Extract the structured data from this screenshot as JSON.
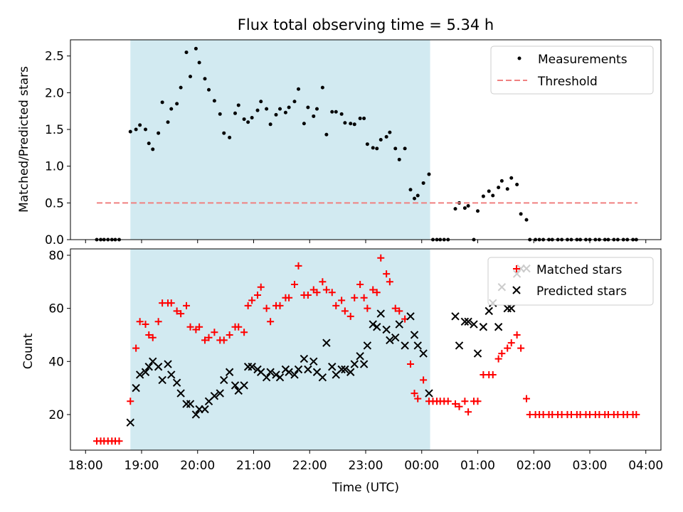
{
  "chart_data": [
    {
      "type": "scatter",
      "title": "Flux total observing time = 5.34 h",
      "xlabel": "",
      "ylabel": "Matched/Predicted stars",
      "ylim": [
        0,
        2.72
      ],
      "yticks": [
        "0.0",
        "0.5",
        "1.0",
        "1.5",
        "2.0",
        "2.5"
      ],
      "xlim": [
        -0.27,
        10.27
      ],
      "shaded_interval": [
        0.8,
        6.15
      ],
      "shade_color": "#add8e6",
      "legend_position": "top-right",
      "series": [
        {
          "name": "Measurements",
          "kind": "points",
          "color": "#000000",
          "x": [
            0.2,
            0.27,
            0.33,
            0.4,
            0.47,
            0.53,
            0.6,
            0.8,
            0.9,
            0.97,
            1.07,
            1.13,
            1.2,
            1.3,
            1.37,
            1.47,
            1.53,
            1.63,
            1.7,
            1.8,
            1.87,
            1.97,
            2.03,
            2.13,
            2.2,
            2.3,
            2.4,
            2.47,
            2.57,
            2.67,
            2.73,
            2.83,
            2.9,
            2.97,
            3.07,
            3.13,
            3.23,
            3.3,
            3.4,
            3.47,
            3.57,
            3.63,
            3.73,
            3.8,
            3.9,
            3.97,
            4.07,
            4.13,
            4.23,
            4.3,
            4.4,
            4.47,
            4.57,
            4.63,
            4.73,
            4.8,
            4.9,
            4.97,
            5.03,
            5.13,
            5.2,
            5.27,
            5.37,
            5.43,
            5.53,
            5.6,
            5.7,
            5.8,
            5.87,
            5.93,
            6.03,
            6.13,
            6.2,
            6.27,
            6.33,
            6.4,
            6.47,
            6.6,
            6.67,
            6.77,
            6.83,
            6.93,
            7.0,
            7.1,
            7.2,
            7.27,
            7.37,
            7.43,
            7.53,
            7.6,
            7.7,
            7.77,
            7.87,
            7.93,
            8.03,
            8.1,
            8.17,
            8.27,
            8.33,
            8.43,
            8.5,
            8.6,
            8.67,
            8.77,
            8.83,
            8.93,
            9.0,
            9.1,
            9.17,
            9.27,
            9.33,
            9.43,
            9.5,
            9.6,
            9.67,
            9.77,
            9.83
          ],
          "y": [
            0,
            0,
            0,
            0,
            0,
            0,
            0,
            1.47,
            1.5,
            1.56,
            1.5,
            1.31,
            1.23,
            1.45,
            1.87,
            1.6,
            1.78,
            1.85,
            2.07,
            2.55,
            2.22,
            2.6,
            2.41,
            2.19,
            2.04,
            1.89,
            1.71,
            1.45,
            1.39,
            1.72,
            1.83,
            1.64,
            1.6,
            1.66,
            1.76,
            1.88,
            1.78,
            1.57,
            1.7,
            1.78,
            1.73,
            1.8,
            1.88,
            2.05,
            1.58,
            1.8,
            1.68,
            1.78,
            2.07,
            1.43,
            1.74,
            1.74,
            1.71,
            1.59,
            1.58,
            1.57,
            1.65,
            1.65,
            1.3,
            1.25,
            1.24,
            1.36,
            1.4,
            1.46,
            1.24,
            1.09,
            1.24,
            0.68,
            0.56,
            0.6,
            0.77,
            0.89,
            0,
            0,
            0,
            0,
            0,
            0.42,
            0.5,
            0.43,
            0.46,
            0,
            0.39,
            0.59,
            0.66,
            0.6,
            0.71,
            0.8,
            0.69,
            0.84,
            0.75,
            0.35,
            0.27,
            0,
            0,
            0,
            0,
            0,
            0,
            0,
            0,
            0,
            0,
            0,
            0,
            0,
            0,
            0,
            0,
            0,
            0,
            0,
            0,
            0,
            0,
            0,
            0
          ]
        },
        {
          "name": "Threshold",
          "kind": "dashed-line",
          "color": "#f08080",
          "x": [
            0.2,
            9.85
          ],
          "y": [
            0.5,
            0.5
          ]
        }
      ]
    },
    {
      "type": "scatter",
      "title": "",
      "xlabel": "Time (UTC)",
      "ylabel": "Count",
      "ylim": [
        6.6,
        82.4
      ],
      "yticks": [
        "20",
        "40",
        "60",
        "80"
      ],
      "xlim": [
        -0.27,
        10.27
      ],
      "categories": [
        "18:00",
        "19:00",
        "20:00",
        "21:00",
        "22:00",
        "23:00",
        "00:00",
        "01:00",
        "02:00",
        "03:00",
        "04:00"
      ],
      "shaded_interval": [
        0.8,
        6.15
      ],
      "shade_color": "#add8e6",
      "legend_position": "top-right",
      "series": [
        {
          "name": "Matched stars",
          "kind": "plus",
          "color": "#ff0000",
          "x": [
            0.2,
            0.27,
            0.33,
            0.4,
            0.47,
            0.53,
            0.6,
            0.8,
            0.9,
            0.97,
            1.07,
            1.13,
            1.2,
            1.3,
            1.37,
            1.47,
            1.53,
            1.63,
            1.7,
            1.8,
            1.87,
            1.97,
            2.03,
            2.13,
            2.2,
            2.3,
            2.4,
            2.47,
            2.57,
            2.67,
            2.73,
            2.83,
            2.9,
            2.97,
            3.07,
            3.13,
            3.23,
            3.3,
            3.4,
            3.47,
            3.57,
            3.63,
            3.73,
            3.8,
            3.9,
            3.97,
            4.07,
            4.13,
            4.23,
            4.3,
            4.4,
            4.47,
            4.57,
            4.63,
            4.73,
            4.8,
            4.9,
            4.97,
            5.03,
            5.13,
            5.2,
            5.27,
            5.37,
            5.43,
            5.53,
            5.6,
            5.7,
            5.8,
            5.87,
            5.93,
            6.03,
            6.13,
            6.2,
            6.27,
            6.33,
            6.4,
            6.47,
            6.6,
            6.67,
            6.77,
            6.83,
            6.93,
            7.0,
            7.1,
            7.2,
            7.27,
            7.37,
            7.43,
            7.53,
            7.6,
            7.7,
            7.77,
            7.87,
            7.93,
            8.03,
            8.1,
            8.17,
            8.27,
            8.33,
            8.43,
            8.5,
            8.6,
            8.67,
            8.77,
            8.83,
            8.93,
            9.0,
            9.1,
            9.17,
            9.27,
            9.33,
            9.43,
            9.5,
            9.6,
            9.67,
            9.77,
            9.83
          ],
          "y": [
            10,
            10,
            10,
            10,
            10,
            10,
            10,
            25,
            45,
            55,
            54,
            50,
            49,
            55,
            62,
            62,
            62,
            59,
            58,
            61,
            53,
            52,
            53,
            48,
            49,
            51,
            48,
            48,
            50,
            53,
            53,
            51,
            61,
            63,
            65,
            68,
            60,
            55,
            61,
            61,
            64,
            64,
            69,
            76,
            65,
            65,
            67,
            66,
            70,
            67,
            66,
            61,
            63,
            59,
            57,
            64,
            69,
            64,
            60,
            67,
            66,
            79,
            73,
            70,
            60,
            59,
            56,
            39,
            28,
            26,
            33,
            25,
            25,
            25,
            25,
            25,
            25,
            24,
            23,
            25,
            21,
            25,
            25,
            35,
            35,
            35,
            41,
            43,
            45,
            47,
            50,
            45,
            26,
            20,
            20,
            20,
            20,
            20,
            20,
            20,
            20,
            20,
            20,
            20,
            20,
            20,
            20,
            20,
            20,
            20,
            20,
            20,
            20,
            20,
            20,
            20,
            20
          ]
        },
        {
          "name": "Predicted stars",
          "kind": "x",
          "color": "#000000",
          "x": [
            0.8,
            0.9,
            0.97,
            1.07,
            1.13,
            1.2,
            1.3,
            1.37,
            1.47,
            1.53,
            1.63,
            1.7,
            1.8,
            1.87,
            1.97,
            2.03,
            2.13,
            2.2,
            2.3,
            2.4,
            2.47,
            2.57,
            2.67,
            2.73,
            2.83,
            2.9,
            2.97,
            3.07,
            3.13,
            3.23,
            3.3,
            3.4,
            3.47,
            3.57,
            3.63,
            3.73,
            3.8,
            3.9,
            3.97,
            4.07,
            4.13,
            4.23,
            4.3,
            4.4,
            4.47,
            4.57,
            4.63,
            4.73,
            4.8,
            4.9,
            4.97,
            5.03,
            5.13,
            5.2,
            5.27,
            5.37,
            5.43,
            5.53,
            5.6,
            5.7,
            5.8,
            5.87,
            5.93,
            6.03,
            6.13,
            6.6,
            6.67,
            6.77,
            6.83,
            6.93,
            7.0,
            7.1,
            7.2,
            7.27,
            7.37,
            7.43,
            7.53,
            7.6,
            7.7,
            7.77,
            7.87
          ],
          "y": [
            17,
            30,
            35,
            36,
            38,
            40,
            38,
            33,
            39,
            35,
            32,
            28,
            24,
            24,
            20,
            22,
            22,
            25,
            27,
            28,
            33,
            36,
            31,
            29,
            31,
            38,
            38,
            37,
            36,
            34,
            36,
            35,
            34,
            37,
            36,
            35,
            37,
            41,
            37,
            40,
            36,
            34,
            47,
            38,
            35,
            37,
            37,
            36,
            39,
            42,
            39,
            46,
            54,
            53,
            58,
            52,
            48,
            49,
            54,
            46,
            57,
            50,
            46,
            43,
            28,
            57,
            46,
            55,
            55,
            54,
            43,
            53,
            59,
            62,
            53,
            68,
            60,
            60,
            73,
            75,
            75
          ]
        }
      ]
    }
  ]
}
